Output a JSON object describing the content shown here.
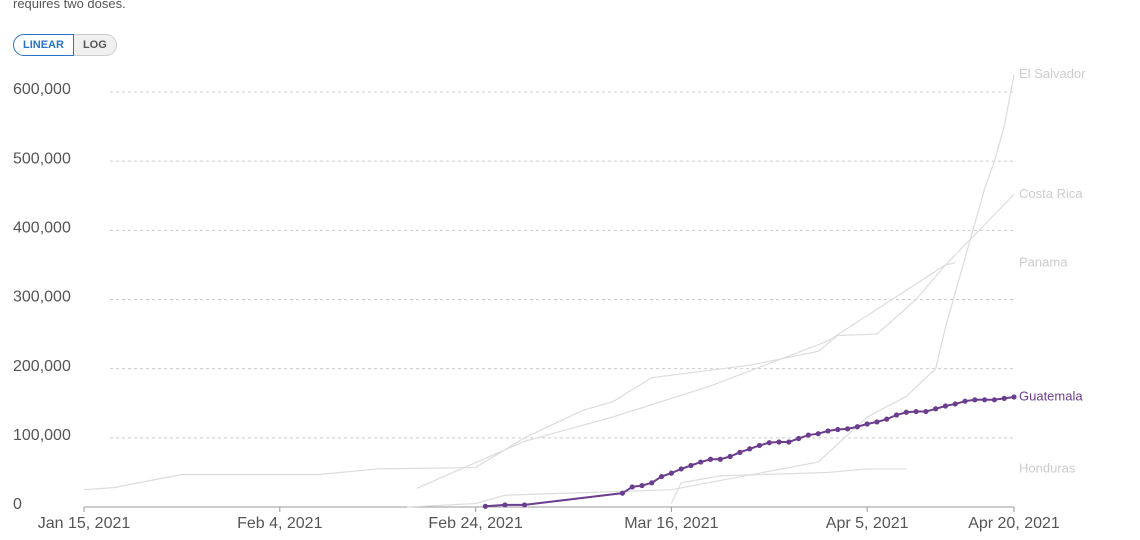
{
  "note_text": "requires two doses.",
  "controls": {
    "linear": "LINEAR",
    "log": "LOG"
  },
  "chart_data": {
    "type": "line",
    "scale": "linear",
    "grid": true,
    "xlim": [
      "2021-01-15",
      "2021-04-20"
    ],
    "xticks": [
      {
        "value": "2021-01-15",
        "label": "Jan 15, 2021"
      },
      {
        "value": "2021-02-04",
        "label": "Feb 4, 2021"
      },
      {
        "value": "2021-02-24",
        "label": "Feb 24, 2021"
      },
      {
        "value": "2021-03-16",
        "label": "Mar 16, 2021"
      },
      {
        "value": "2021-04-05",
        "label": "Apr 5, 2021"
      },
      {
        "value": "2021-04-20",
        "label": "Apr 20, 2021"
      }
    ],
    "ylim": [
      0,
      600000
    ],
    "yticks": [
      0,
      {
        "value": 100000,
        "label": "100,000"
      },
      {
        "value": 200000,
        "label": "200,000"
      },
      {
        "value": 300000,
        "label": "300,000"
      },
      {
        "value": 400000,
        "label": "400,000"
      },
      {
        "value": 500000,
        "label": "500,000"
      },
      {
        "value": 600000,
        "label": "600,000"
      }
    ],
    "series": [
      {
        "name": "El Salvador",
        "color": "#dcdcdc",
        "markers": false,
        "x": [
          "2021-02-17",
          "2021-02-24",
          "2021-02-27",
          "2021-03-16",
          "2021-03-31",
          "2021-04-05",
          "2021-04-09",
          "2021-04-12",
          "2021-04-13",
          "2021-04-17",
          "2021-04-18",
          "2021-04-19",
          "2021-04-20"
        ],
        "values": [
          0,
          5000,
          17000,
          25000,
          65000,
          130000,
          160000,
          200000,
          260000,
          460000,
          500000,
          550000,
          625000
        ]
      },
      {
        "name": "Costa Rica",
        "color": "#dcdcdc",
        "markers": false,
        "x": [
          "2021-02-18",
          "2021-03-01",
          "2021-03-10",
          "2021-03-20",
          "2021-04-01",
          "2021-04-13",
          "2021-04-20"
        ],
        "values": [
          27000,
          95000,
          130000,
          175000,
          240000,
          350000,
          452000
        ]
      },
      {
        "name": "Panama",
        "color": "#dcdcdc",
        "markers": false,
        "x": [
          "2021-01-15",
          "2021-01-18",
          "2021-01-25",
          "2021-02-08",
          "2021-02-14",
          "2021-02-24",
          "2021-03-01",
          "2021-03-07",
          "2021-03-10",
          "2021-03-14",
          "2021-03-24",
          "2021-03-31",
          "2021-04-02",
          "2021-04-06",
          "2021-04-10",
          "2021-04-13",
          "2021-04-14"
        ],
        "values": [
          25000,
          28000,
          47000,
          47000,
          55000,
          57000,
          100000,
          140000,
          152000,
          187000,
          205000,
          225000,
          248000,
          250000,
          300000,
          350000,
          353000
        ]
      },
      {
        "name": "Honduras",
        "color": "#dcdcdc",
        "markers": false,
        "x": [
          "2021-03-16",
          "2021-03-17",
          "2021-03-21",
          "2021-04-01",
          "2021-04-05",
          "2021-04-09"
        ],
        "values": [
          5000,
          35000,
          45000,
          50000,
          55000,
          55000
        ]
      },
      {
        "name": "Guatemala",
        "color": "#6b3d8f",
        "markers": true,
        "x": [
          "2021-02-25",
          "2021-02-27",
          "2021-03-01",
          "2021-03-11",
          "2021-03-12",
          "2021-03-13",
          "2021-03-14",
          "2021-03-15",
          "2021-03-16",
          "2021-03-17",
          "2021-03-18",
          "2021-03-19",
          "2021-03-20",
          "2021-03-21",
          "2021-03-22",
          "2021-03-23",
          "2021-03-24",
          "2021-03-25",
          "2021-03-26",
          "2021-03-27",
          "2021-03-28",
          "2021-03-29",
          "2021-03-30",
          "2021-03-31",
          "2021-04-01",
          "2021-04-02",
          "2021-04-03",
          "2021-04-04",
          "2021-04-05",
          "2021-04-06",
          "2021-04-07",
          "2021-04-08",
          "2021-04-09",
          "2021-04-10",
          "2021-04-11",
          "2021-04-12",
          "2021-04-13",
          "2021-04-14",
          "2021-04-15",
          "2021-04-16",
          "2021-04-17",
          "2021-04-18",
          "2021-04-19",
          "2021-04-20"
        ],
        "values": [
          1000,
          3000,
          3000,
          20000,
          29000,
          31000,
          35000,
          44000,
          49000,
          55000,
          60000,
          65000,
          69000,
          69000,
          73000,
          79000,
          84000,
          89000,
          93000,
          94000,
          94000,
          99000,
          104000,
          106000,
          110000,
          112000,
          113000,
          116000,
          120000,
          123000,
          127000,
          133000,
          137000,
          138000,
          138000,
          142000,
          146000,
          149000,
          153000,
          155000,
          155000,
          155000,
          157000,
          159000
        ]
      }
    ]
  }
}
